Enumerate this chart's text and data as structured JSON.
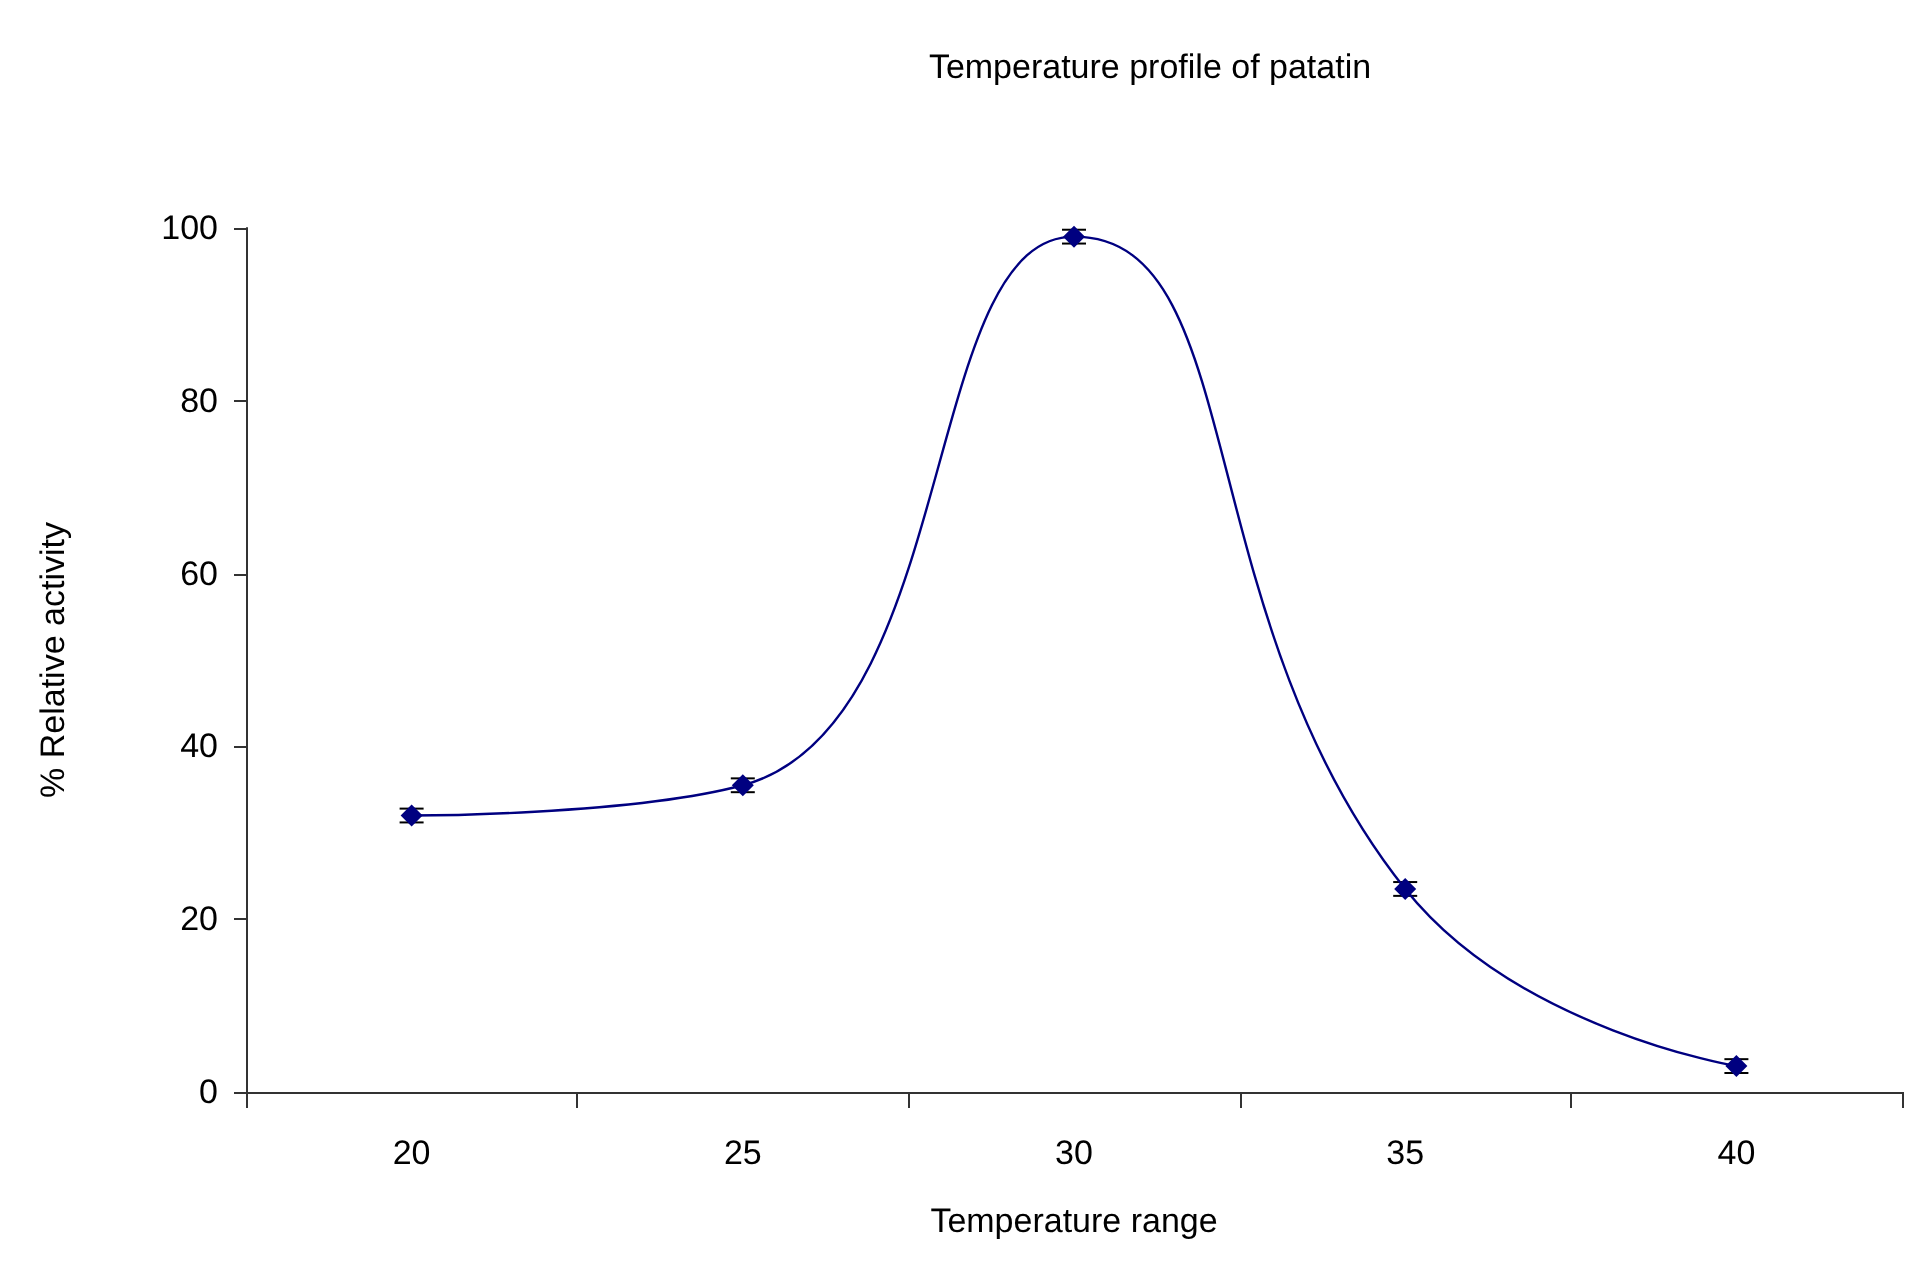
{
  "chart_data": {
    "type": "line",
    "title": "Temperature profile of patatin",
    "xlabel": "Temperature range",
    "ylabel": "% Relative activity",
    "categories": [
      "20",
      "25",
      "30",
      "35",
      "40"
    ],
    "series": [
      {
        "color": "#000080",
        "values": [
          32,
          35.5,
          99,
          23.5,
          3
        ],
        "errors": [
          0.8,
          0.8,
          0.8,
          0.8,
          0.8
        ]
      }
    ],
    "ylim": [
      0,
      100
    ],
    "yticks": [
      0,
      20,
      40,
      60,
      80,
      100
    ],
    "grid": false,
    "marker": "diamond",
    "line_style": "solid"
  }
}
